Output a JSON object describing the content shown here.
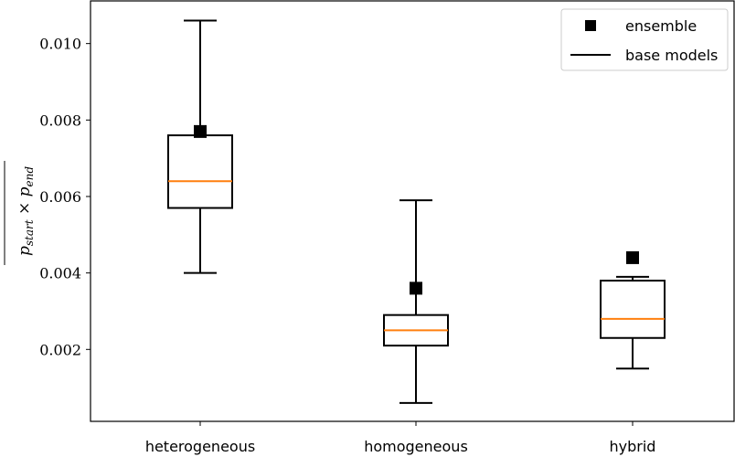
{
  "chart_data": {
    "type": "box",
    "categories": [
      "heterogeneous",
      "homogeneous",
      "hybrid"
    ],
    "boxes": [
      {
        "category": "heterogeneous",
        "whisker_low": 0.004,
        "q1": 0.0057,
        "median": 0.0064,
        "q3": 0.0076,
        "whisker_high": 0.0106
      },
      {
        "category": "homogeneous",
        "whisker_low": 0.0006,
        "q1": 0.0021,
        "median": 0.0025,
        "q3": 0.0029,
        "whisker_high": 0.0059
      },
      {
        "category": "hybrid",
        "whisker_low": 0.0015,
        "q1": 0.0023,
        "median": 0.0028,
        "q3": 0.0038,
        "whisker_high": 0.0039
      }
    ],
    "ensemble": [
      {
        "category": "heterogeneous",
        "value": 0.0077
      },
      {
        "category": "homogeneous",
        "value": 0.0036
      },
      {
        "category": "hybrid",
        "value": 0.0044
      }
    ],
    "legend": {
      "placement": "top-right",
      "entries": [
        {
          "label": "ensemble",
          "marker": "square"
        },
        {
          "label": "base models",
          "marker": "line"
        }
      ]
    },
    "yticks": [
      "0.002",
      "0.004",
      "0.006",
      "0.008",
      "0.010"
    ],
    "ytick_values": [
      0.002,
      0.004,
      0.006,
      0.008,
      0.01
    ],
    "ylim": [
      0.0,
      0.011
    ],
    "ylabel_base": "p",
    "ylabel_sub1": "start",
    "ylabel_mid": " × ",
    "ylabel_sub2": "end",
    "grid": false,
    "colors": {
      "median": "#ff7f0e",
      "box": "#000000",
      "marker": "#000000"
    }
  }
}
